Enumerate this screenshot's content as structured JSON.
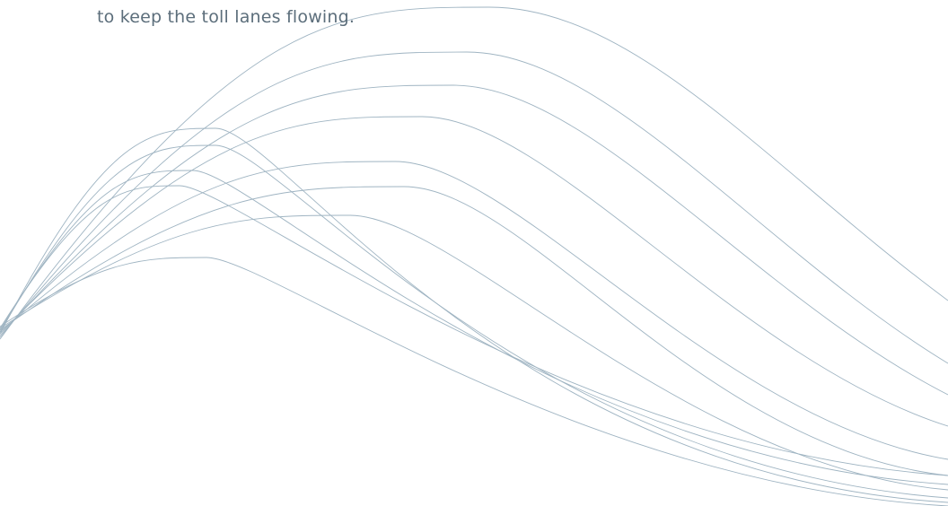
{
  "text": "to keep the toll lanes flowing."
}
